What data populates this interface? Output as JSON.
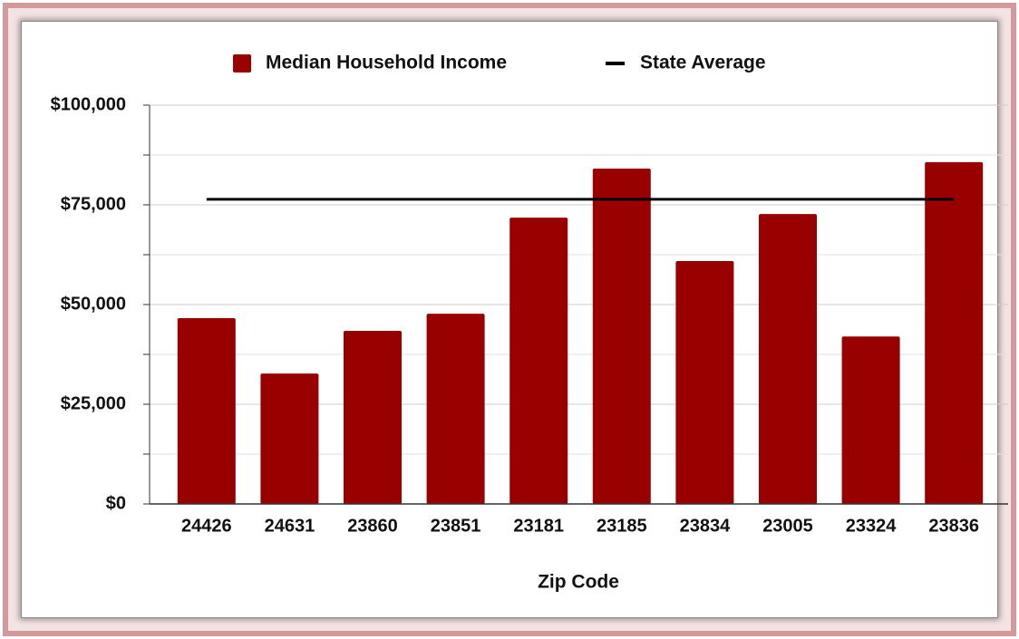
{
  "chart_data": {
    "type": "bar",
    "x_label": "Zip Code",
    "categories": [
      "24426",
      "24631",
      "23860",
      "23851",
      "23181",
      "23185",
      "23834",
      "23005",
      "23324",
      "23836"
    ],
    "series": [
      {
        "name": "Median Household Income",
        "color": "#990000",
        "values": [
          46600,
          32700,
          43400,
          47700,
          71800,
          84100,
          60900,
          72700,
          42000,
          85700
        ]
      }
    ],
    "state_average": {
      "name": "State Average",
      "color": "#000000",
      "value": 76400
    },
    "ylim": [
      0,
      100000
    ],
    "yticks": [
      {
        "value": 0,
        "label": "$0"
      },
      {
        "value": 25000,
        "label": "$25,000"
      },
      {
        "value": 50000,
        "label": "$50,000"
      },
      {
        "value": 75000,
        "label": "$75,000"
      },
      {
        "value": 100000,
        "label": "$100,000"
      }
    ],
    "minor_yticks": [
      12500,
      37500,
      62500,
      87500
    ],
    "grid": true,
    "legend": "top"
  }
}
